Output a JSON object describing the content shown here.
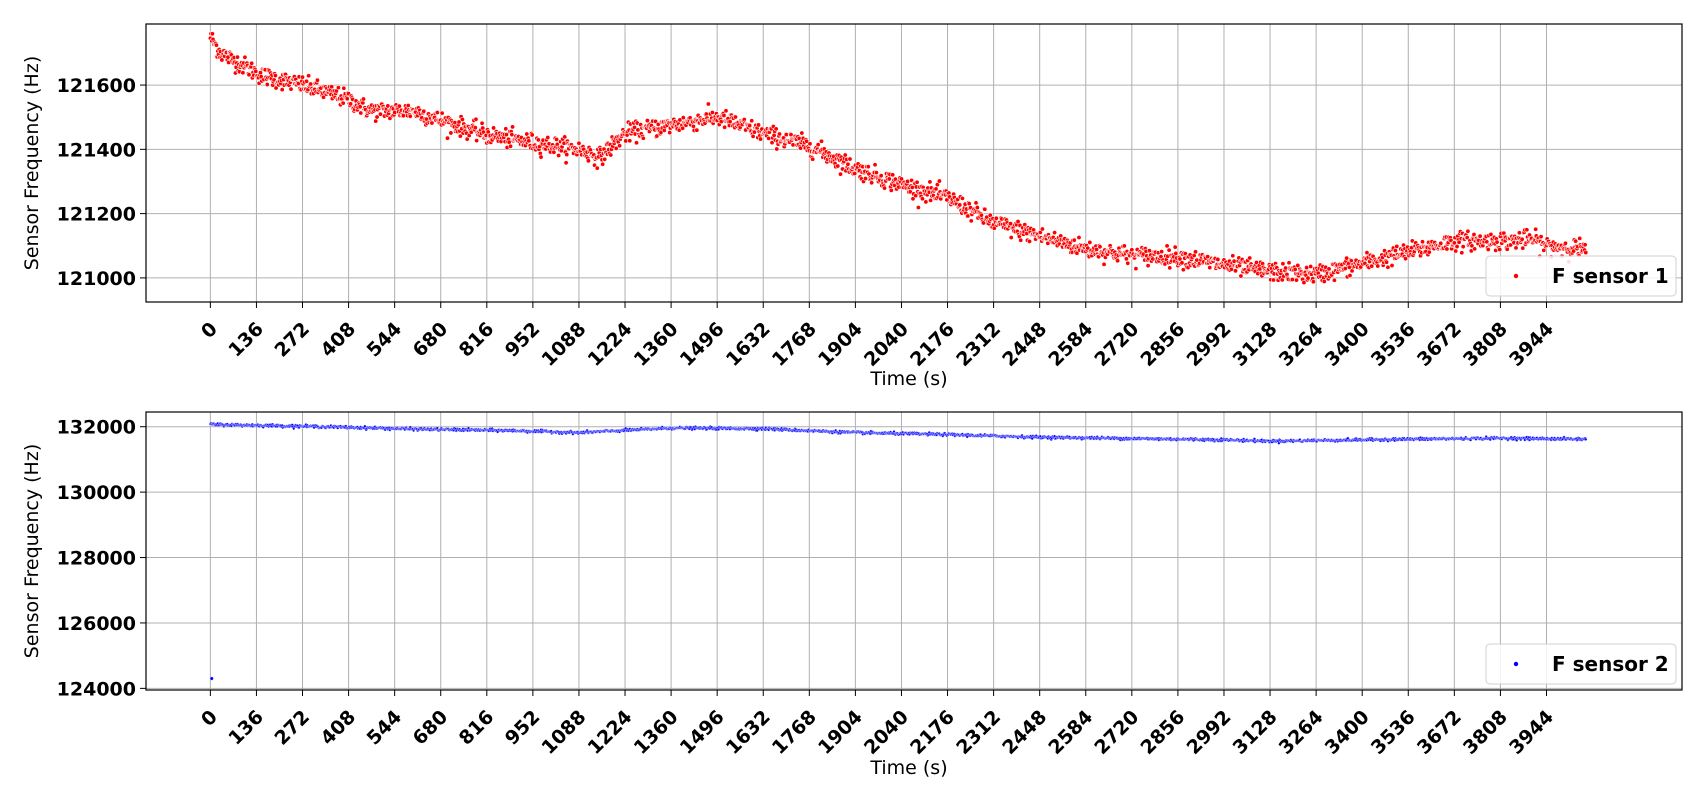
{
  "chart_data": [
    {
      "type": "scatter",
      "xlabel": "Time (s)",
      "ylabel": "Sensor Frequency (Hz)",
      "xlim": [
        -190,
        4344
      ],
      "ylim": [
        120925,
        121790
      ],
      "xticks": [
        0,
        136,
        272,
        408,
        544,
        680,
        816,
        952,
        1088,
        1224,
        1360,
        1496,
        1632,
        1768,
        1904,
        2040,
        2176,
        2312,
        2448,
        2584,
        2720,
        2856,
        2992,
        3128,
        3264,
        3400,
        3536,
        3672,
        3808,
        3944
      ],
      "yticks": [
        121000,
        121200,
        121400,
        121600
      ],
      "grid": true,
      "legend": "lower-right",
      "series": [
        {
          "name": "F sensor 1",
          "color": "#ff0000",
          "trend": [
            [
              0,
              121750
            ],
            [
              30,
              121700
            ],
            [
              150,
              121630
            ],
            [
              272,
              121600
            ],
            [
              408,
              121555
            ],
            [
              470,
              121520
            ],
            [
              600,
              121520
            ],
            [
              680,
              121490
            ],
            [
              816,
              121445
            ],
            [
              952,
              121420
            ],
            [
              1088,
              121400
            ],
            [
              1150,
              121375
            ],
            [
              1224,
              121450
            ],
            [
              1360,
              121475
            ],
            [
              1496,
              121500
            ],
            [
              1632,
              121450
            ],
            [
              1768,
              121410
            ],
            [
              1904,
              121340
            ],
            [
              2040,
              121290
            ],
            [
              2176,
              121250
            ],
            [
              2312,
              121170
            ],
            [
              2448,
              121130
            ],
            [
              2584,
              121090
            ],
            [
              2720,
              121070
            ],
            [
              2856,
              121065
            ],
            [
              2992,
              121040
            ],
            [
              3128,
              121020
            ],
            [
              3264,
              121010
            ],
            [
              3400,
              121045
            ],
            [
              3536,
              121080
            ],
            [
              3672,
              121115
            ],
            [
              3808,
              121115
            ],
            [
              3900,
              121120
            ],
            [
              3944,
              121100
            ],
            [
              4060,
              121090
            ]
          ],
          "noise": 14
        }
      ]
    },
    {
      "type": "scatter",
      "xlabel": "Time (s)",
      "ylabel": "Sensor Frequency (Hz)",
      "xlim": [
        -190,
        4344
      ],
      "ylim": [
        123950,
        132450
      ],
      "xticks": [
        0,
        136,
        272,
        408,
        544,
        680,
        816,
        952,
        1088,
        1224,
        1360,
        1496,
        1632,
        1768,
        1904,
        2040,
        2176,
        2312,
        2448,
        2584,
        2720,
        2856,
        2992,
        3128,
        3264,
        3400,
        3536,
        3672,
        3808,
        3944
      ],
      "yticks": [
        124000,
        126000,
        128000,
        130000,
        132000
      ],
      "grid": true,
      "legend": "lower-right",
      "series": [
        {
          "name": "F sensor 2",
          "color": "#0000ff",
          "trend": [
            [
              0,
              132070
            ],
            [
              300,
              132010
            ],
            [
              600,
              131930
            ],
            [
              900,
              131880
            ],
            [
              1088,
              131820
            ],
            [
              1360,
              131960
            ],
            [
              1632,
              131940
            ],
            [
              1904,
              131820
            ],
            [
              2176,
              131760
            ],
            [
              2448,
              131680
            ],
            [
              2720,
              131640
            ],
            [
              2992,
              131600
            ],
            [
              3128,
              131560
            ],
            [
              3264,
              131580
            ],
            [
              3536,
              131620
            ],
            [
              3808,
              131650
            ],
            [
              4060,
              131620
            ]
          ],
          "noise": 20,
          "outlier": [
            4,
            124300
          ]
        }
      ]
    }
  ]
}
